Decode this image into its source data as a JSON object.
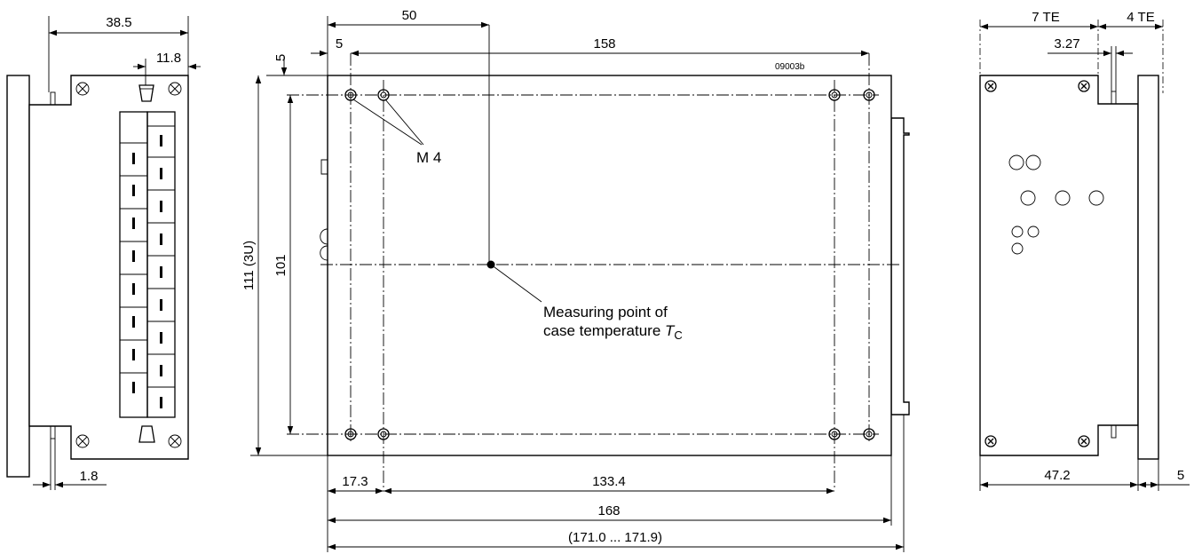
{
  "drawing_code": "09003b",
  "side_view": {
    "width": "38.5",
    "offset": "11.8",
    "flange": "1.8"
  },
  "top_view": {
    "hole_x_offset": "50",
    "edge_margin_x": "5",
    "edge_margin_y": "5",
    "hole_span": "158",
    "height": "111 (3U)",
    "hole_pitch_vertical": "101",
    "inset": "17.3",
    "hole_pitch_horizontal": "133.4",
    "length": "168",
    "length_range": "(171.0 ... 171.9)",
    "thread_label": "M 4",
    "measuring_point_line1": "Measuring point of",
    "measuring_point_line2": "case temperature ",
    "tc_symbol": "T",
    "tc_subscript": "C"
  },
  "front_view": {
    "width_te": "7 TE",
    "panel_te": "4 TE",
    "offset": "3.27",
    "width": "47.2",
    "panel_thickness": "5"
  }
}
